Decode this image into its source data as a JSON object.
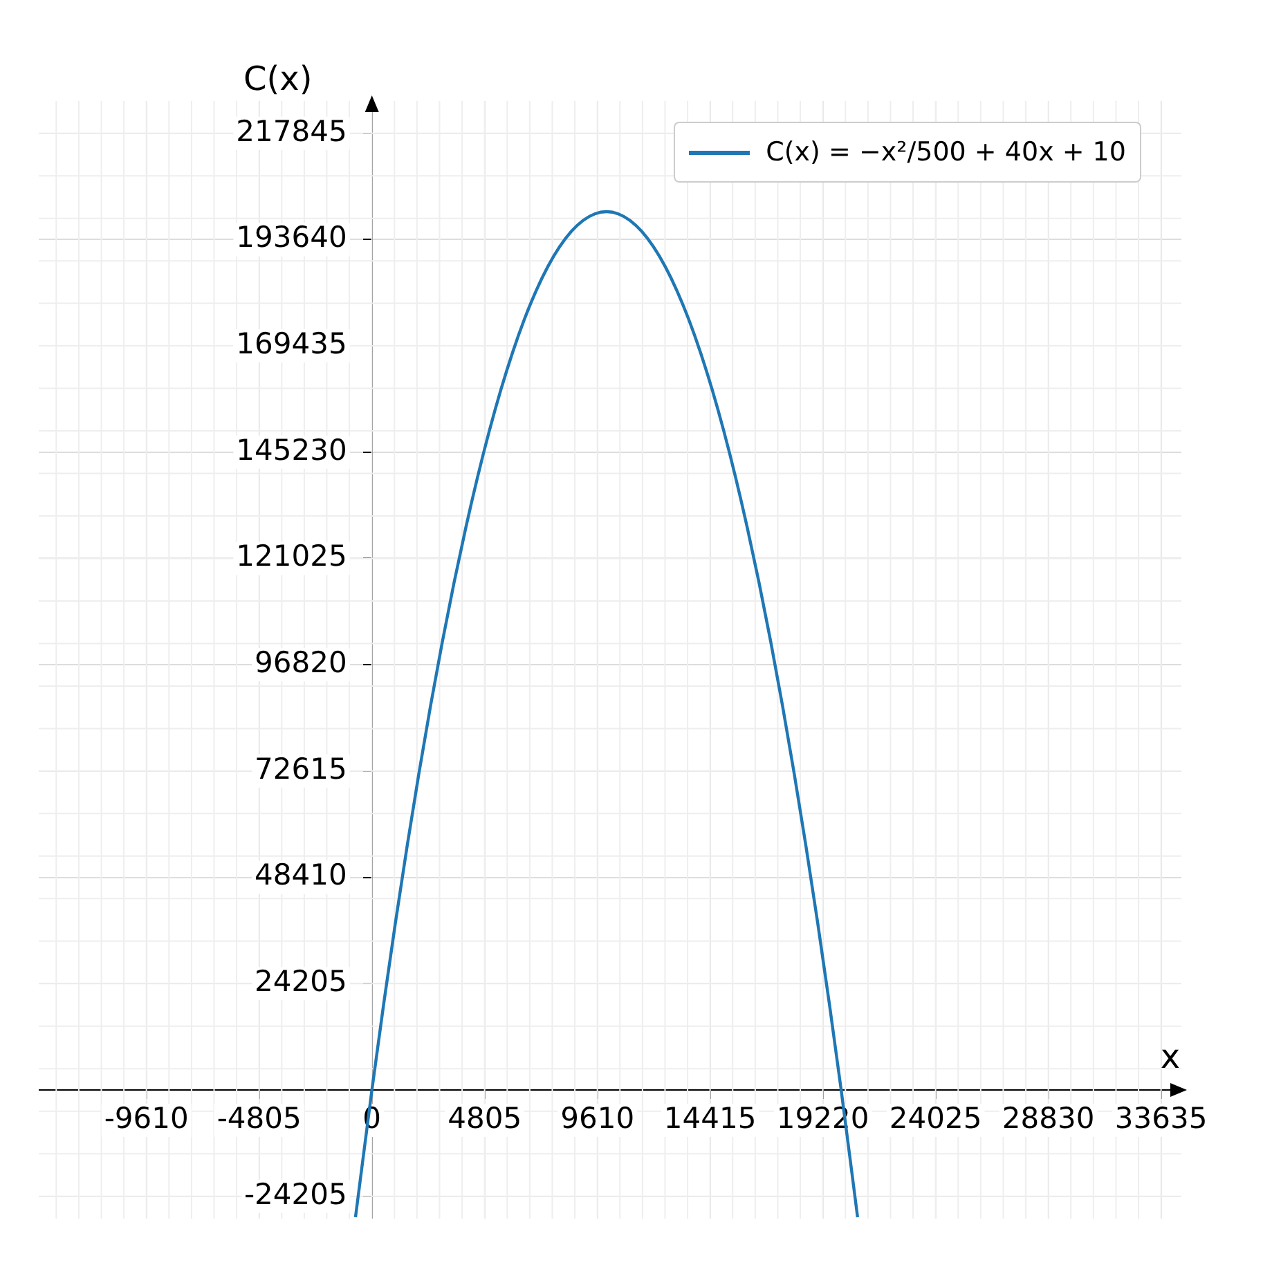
{
  "chart_data": {
    "type": "line",
    "xlabel": "x",
    "ylabel": "C(x)",
    "x": [
      -700,
      0,
      500,
      1000,
      1500,
      2000,
      2500,
      3000,
      3500,
      4000,
      4500,
      5000,
      5500,
      6000,
      6500,
      7000,
      7500,
      8000,
      8500,
      9000,
      9500,
      10000,
      10500,
      11000,
      11500,
      12000,
      12500,
      13000,
      13500,
      14000,
      14500,
      15000,
      15500,
      16000,
      16500,
      17000,
      17500,
      18000,
      18500,
      19000,
      19500,
      20000,
      20700
    ],
    "series": [
      {
        "name": "C(x) = −x²/500 + 40x + 10",
        "color": "#1f77b4",
        "values": [
          -29000,
          0,
          19500,
          38000,
          55500,
          72000,
          87500,
          102000,
          115500,
          128000,
          139500,
          150000,
          159500,
          168000,
          175500,
          182000,
          187500,
          192000,
          195500,
          198000,
          199500,
          200000,
          199500,
          198000,
          195500,
          192000,
          187500,
          182000,
          175500,
          168000,
          159500,
          150000,
          139500,
          128000,
          115500,
          102000,
          87500,
          72000,
          55500,
          38000,
          19500,
          0,
          -29000
        ]
      }
    ],
    "xlim": [
      -14200,
      34500
    ],
    "ylim": [
      -29300,
      225200
    ],
    "xticks": [
      -9610,
      -4805,
      0,
      4805,
      9610,
      14415,
      19220,
      24025,
      28830,
      33635
    ],
    "yticks": [
      -24205,
      24205,
      48410,
      72615,
      96820,
      121025,
      145230,
      169435,
      193640,
      217845
    ],
    "grid": true,
    "legend": "top right"
  }
}
